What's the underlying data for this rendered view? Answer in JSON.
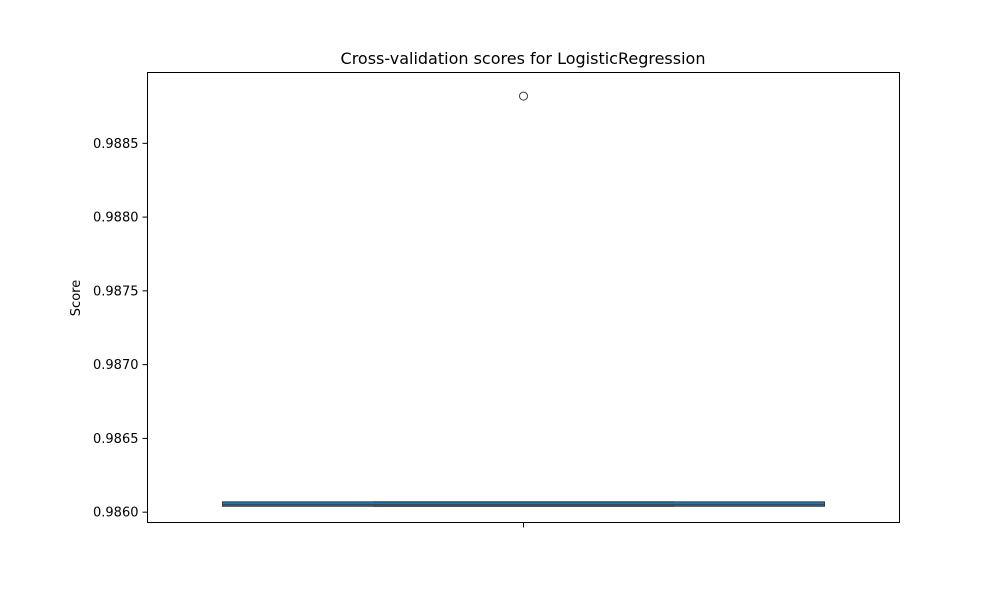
{
  "chart_data": {
    "type": "boxplot",
    "title": "Cross-validation scores for LogisticRegression",
    "xlabel": "",
    "ylabel": "Score",
    "ylim": [
      0.98593,
      0.98898
    ],
    "yticks": [
      0.986,
      0.9865,
      0.987,
      0.9875,
      0.988,
      0.9885
    ],
    "ytick_labels": [
      "0.9860",
      "0.9865",
      "0.9870",
      "0.9875",
      "0.9880",
      "0.9885"
    ],
    "box": {
      "min": 0.98604,
      "q1": 0.98604,
      "median": 0.98605,
      "q3": 0.98607,
      "max": 0.98607,
      "fliers": [
        0.98882
      ]
    },
    "grid": false,
    "box_color": "#1f77b4",
    "edge_color": "#3b3b3b"
  }
}
